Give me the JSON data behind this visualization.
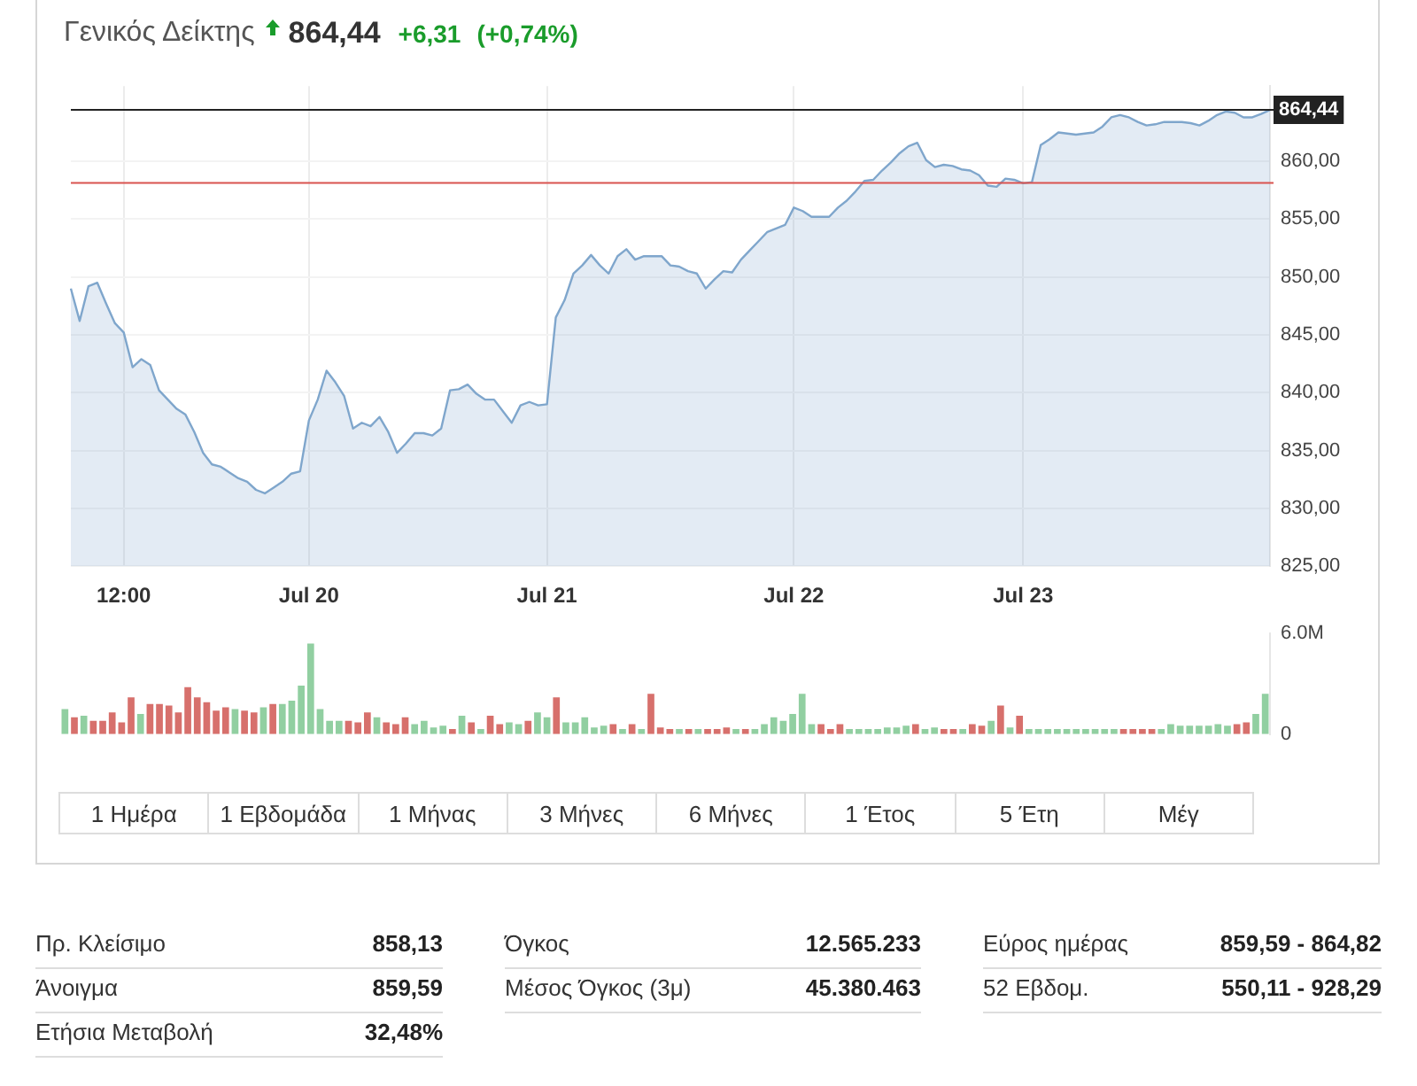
{
  "chart_data": [
    {
      "type": "area",
      "title": "Γενικός Δείκτης",
      "annotations": [
        "864,44",
        "+6,31",
        "(+0,74%)"
      ],
      "categories": [
        null,
        null,
        null,
        null,
        null,
        null,
        "12:00",
        null,
        null,
        null,
        null,
        null,
        null,
        null,
        null,
        null,
        null,
        null,
        null,
        null,
        null,
        null,
        null,
        null,
        null,
        null,
        null,
        "Jul 20",
        null,
        null,
        null,
        null,
        null,
        null,
        null,
        null,
        null,
        null,
        null,
        null,
        null,
        null,
        null,
        null,
        null,
        null,
        null,
        null,
        null,
        null,
        null,
        null,
        null,
        null,
        "Jul 21",
        null,
        null,
        null,
        null,
        null,
        null,
        null,
        null,
        null,
        null,
        null,
        null,
        null,
        null,
        null,
        null,
        null,
        null,
        null,
        null,
        null,
        null,
        null,
        null,
        null,
        null,
        null,
        "Jul 22",
        null,
        null,
        null,
        null,
        null,
        null,
        null,
        null,
        null,
        null,
        null,
        null,
        null,
        null,
        null,
        null,
        null,
        null,
        null,
        null,
        null,
        null,
        null,
        null,
        null,
        "Jul 23",
        null,
        null,
        null,
        null,
        null,
        null,
        null,
        null,
        null,
        null,
        null,
        null,
        null,
        null,
        null,
        null,
        null,
        null,
        null,
        null,
        null,
        null,
        null,
        null,
        null,
        null,
        null,
        null
      ],
      "series": [
        {
          "color": "#7fa6cc",
          "values": [
            849.0,
            846.2,
            849.2,
            849.5,
            847.7,
            846.0,
            845.2,
            842.2,
            842.9,
            842.4,
            840.2,
            839.4,
            838.6,
            838.1,
            836.6,
            834.8,
            833.8,
            833.6,
            833.1,
            832.6,
            832.3,
            831.6,
            831.3,
            831.8,
            832.3,
            833.0,
            833.2,
            837.6,
            839.4,
            841.9,
            840.9,
            839.7,
            836.9,
            837.4,
            837.1,
            837.9,
            836.6,
            834.8,
            835.6,
            836.5,
            836.5,
            836.3,
            836.9,
            840.2,
            840.3,
            840.7,
            839.9,
            839.4,
            839.4,
            838.4,
            837.4,
            838.9,
            839.2,
            838.9,
            839.0,
            846.5,
            848.0,
            850.3,
            851.0,
            851.9,
            851.0,
            850.3,
            851.8,
            852.4,
            851.5,
            851.8,
            851.8,
            851.8,
            851.0,
            850.9,
            850.5,
            850.3,
            849.0,
            849.8,
            850.5,
            850.4,
            851.5,
            852.3,
            853.1,
            853.9,
            854.2,
            854.5,
            856.0,
            855.7,
            855.2,
            855.2,
            855.2,
            856.0,
            856.6,
            857.4,
            858.3,
            858.4,
            859.2,
            859.9,
            860.7,
            861.3,
            861.6,
            860.1,
            859.5,
            859.7,
            859.6,
            859.3,
            859.2,
            858.8,
            857.9,
            857.8,
            858.5,
            858.4,
            858.1,
            858.2,
            861.4,
            861.9,
            862.5,
            862.4,
            862.3,
            862.4,
            862.5,
            863.0,
            863.8,
            864.0,
            863.8,
            863.4,
            863.1,
            863.2,
            863.4,
            863.4,
            863.4,
            863.3,
            863.1,
            863.5,
            864.0,
            864.3,
            864.2,
            863.8,
            863.8,
            864.1,
            864.44
          ]
        }
      ],
      "ylim": [
        825,
        866.5
      ],
      "yticks": [
        {
          "value": 825,
          "label": "825,00"
        },
        {
          "value": 830,
          "label": "830,00"
        },
        {
          "value": 835,
          "label": "835,00"
        },
        {
          "value": 840,
          "label": "840,00"
        },
        {
          "value": 845,
          "label": "845,00"
        },
        {
          "value": 850,
          "label": "850,00"
        },
        {
          "value": 855,
          "label": "855,00"
        },
        {
          "value": 860,
          "label": "860,00"
        }
      ],
      "grid": true,
      "ref_lines": [
        {
          "axis": "y",
          "value": 858.13,
          "color": "#d9534f"
        },
        {
          "axis": "y",
          "value": 864.44,
          "label": "864,44",
          "color": "#222222"
        }
      ]
    },
    {
      "type": "bar",
      "tick_labels": "y",
      "categories": [
        null,
        null,
        null,
        null,
        null,
        null,
        null,
        null,
        null,
        null,
        null,
        null,
        null,
        null,
        null,
        null,
        null,
        null,
        null,
        null,
        null,
        null,
        null,
        null,
        null,
        null,
        null,
        null,
        null,
        null,
        null,
        null,
        null,
        null,
        null,
        null,
        null,
        null,
        null,
        null,
        null,
        null,
        null,
        null,
        null,
        null,
        null,
        null,
        null,
        null,
        null,
        null,
        null,
        null,
        null,
        null,
        null,
        null,
        null,
        null,
        null,
        null,
        null,
        null,
        null,
        null,
        null,
        null,
        null,
        null,
        null,
        null,
        null,
        null,
        null,
        null,
        null,
        null,
        null,
        null,
        null,
        null,
        null,
        null,
        null,
        null,
        null,
        null,
        null,
        null,
        null,
        null,
        null,
        null,
        null,
        null,
        null,
        null,
        null,
        null,
        null,
        null,
        null,
        null,
        null,
        null,
        null,
        null,
        null,
        null,
        null,
        null,
        null,
        null,
        null,
        null,
        null,
        null,
        null,
        null,
        null,
        null,
        null,
        null,
        null,
        null,
        null,
        null
      ],
      "values": [
        1.5,
        1.0,
        1.1,
        0.8,
        0.8,
        1.3,
        0.7,
        2.2,
        1.2,
        1.8,
        1.8,
        1.7,
        1.3,
        2.8,
        2.2,
        1.9,
        1.4,
        1.6,
        1.5,
        1.4,
        1.3,
        1.6,
        1.8,
        1.8,
        2.0,
        2.9,
        5.4,
        1.5,
        0.8,
        0.8,
        0.8,
        0.7,
        1.3,
        1.0,
        0.7,
        0.6,
        1.0,
        0.6,
        0.8,
        0.4,
        0.5,
        0.3,
        1.1,
        0.7,
        0.3,
        1.1,
        0.6,
        0.7,
        0.6,
        0.8,
        1.3,
        1.0,
        2.2,
        0.7,
        0.7,
        1.0,
        0.4,
        0.5,
        0.6,
        0.3,
        0.6,
        0.3,
        2.4,
        0.4,
        0.3,
        0.3,
        0.3,
        0.3,
        0.3,
        0.3,
        0.4,
        0.3,
        0.3,
        0.3,
        0.6,
        1.0,
        0.8,
        1.2,
        2.4,
        0.6,
        0.6,
        0.3,
        0.6,
        0.3,
        0.3,
        0.3,
        0.3,
        0.4,
        0.4,
        0.5,
        0.6,
        0.3,
        0.4,
        0.3,
        0.3,
        0.3,
        0.6,
        0.5,
        0.8,
        1.7,
        0.4,
        1.1,
        0.3,
        0.3,
        0.3,
        0.3,
        0.3,
        0.3,
        0.3,
        0.3,
        0.3,
        0.3,
        0.3,
        0.3,
        0.3,
        0.3,
        0.3,
        0.6,
        0.5,
        0.5,
        0.5,
        0.5,
        0.6,
        0.5,
        0.6,
        0.7,
        1.2,
        2.4
      ],
      "colors": [
        "#91cfa1",
        "#d7706c",
        "#91cfa1",
        "#d7706c",
        "#d7706c",
        "#d7706c",
        "#d7706c",
        "#d7706c",
        "#91cfa1",
        "#d7706c",
        "#d7706c",
        "#d7706c",
        "#d7706c",
        "#d7706c",
        "#d7706c",
        "#d7706c",
        "#d7706c",
        "#d7706c",
        "#91cfa1",
        "#d7706c",
        "#d7706c",
        "#91cfa1",
        "#d7706c",
        "#91cfa1",
        "#91cfa1",
        "#91cfa1",
        "#91cfa1",
        "#91cfa1",
        "#91cfa1",
        "#91cfa1",
        "#d7706c",
        "#d7706c",
        "#d7706c",
        "#91cfa1",
        "#d7706c",
        "#d7706c",
        "#d7706c",
        "#91cfa1",
        "#91cfa1",
        "#91cfa1",
        "#91cfa1",
        "#d7706c",
        "#91cfa1",
        "#d7706c",
        "#91cfa1",
        "#d7706c",
        "#d7706c",
        "#91cfa1",
        "#91cfa1",
        "#d7706c",
        "#91cfa1",
        "#91cfa1",
        "#d7706c",
        "#91cfa1",
        "#91cfa1",
        "#91cfa1",
        "#91cfa1",
        "#91cfa1",
        "#d7706c",
        "#91cfa1",
        "#d7706c",
        "#91cfa1",
        "#d7706c",
        "#d7706c",
        "#d7706c",
        "#91cfa1",
        "#d7706c",
        "#91cfa1",
        "#d7706c",
        "#d7706c",
        "#d7706c",
        "#91cfa1",
        "#d7706c",
        "#91cfa1",
        "#91cfa1",
        "#91cfa1",
        "#91cfa1",
        "#91cfa1",
        "#91cfa1",
        "#91cfa1",
        "#d7706c",
        "#d7706c",
        "#d7706c",
        "#91cfa1",
        "#91cfa1",
        "#91cfa1",
        "#91cfa1",
        "#91cfa1",
        "#91cfa1",
        "#91cfa1",
        "#d7706c",
        "#91cfa1",
        "#91cfa1",
        "#d7706c",
        "#d7706c",
        "#91cfa1",
        "#d7706c",
        "#d7706c",
        "#91cfa1",
        "#d7706c",
        "#91cfa1",
        "#d7706c",
        "#91cfa1",
        "#91cfa1",
        "#91cfa1",
        "#91cfa1",
        "#91cfa1",
        "#91cfa1",
        "#91cfa1",
        "#91cfa1",
        "#91cfa1",
        "#91cfa1",
        "#d7706c",
        "#d7706c",
        "#d7706c",
        "#d7706c",
        "#91cfa1",
        "#91cfa1",
        "#91cfa1",
        "#91cfa1",
        "#91cfa1",
        "#91cfa1",
        "#91cfa1",
        "#91cfa1",
        "#d7706c",
        "#d7706c",
        "#91cfa1",
        "#91cfa1"
      ],
      "ylim": [
        0,
        6
      ],
      "yticks": [
        0,
        {
          "value": 6,
          "label": "6.0M"
        }
      ]
    },
    {
      "type": "other",
      "annotations": [
        "1 Ημέρα",
        "1 Εβδομάδα",
        "1 Μήνας",
        "3 Μήνες",
        "6 Μήνες",
        "1 Έτος",
        "5 Έτη",
        "Μέγ"
      ]
    },
    {
      "type": "other",
      "annotations": [
        "Πρ. Κλείσιμο",
        "858,13",
        "Άνοιγμα",
        "859,59",
        "Ετήσια Μεταβολή",
        "32,48%",
        "Όγκος",
        "12.565.233",
        "Μέσος Όγκος (3μ)",
        "45.380.463",
        "Εύρος ημέρας",
        "859,59 - 864,82",
        "52 Εβδομ.",
        "550,11 - 928,29"
      ]
    }
  ]
}
